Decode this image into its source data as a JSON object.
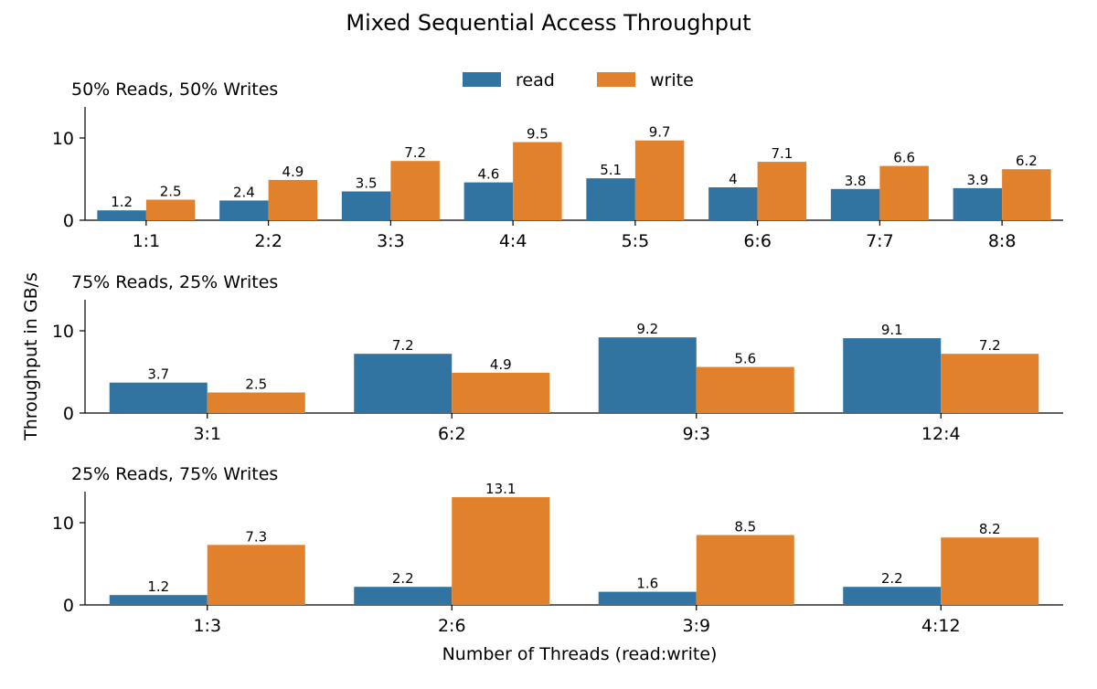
{
  "title": "Mixed Sequential Access Throughput",
  "ylabel": "Throughput in GB/s",
  "xlabel": "Number of Threads (read:write)",
  "legend": [
    {
      "name": "read",
      "color": "#3274a1"
    },
    {
      "name": "write",
      "color": "#e1812c"
    }
  ],
  "chart_data": [
    {
      "type": "bar",
      "title": "50% Reads, 50% Writes",
      "categories": [
        "1:1",
        "2:2",
        "3:3",
        "4:4",
        "5:5",
        "6:6",
        "7:7",
        "8:8"
      ],
      "series": [
        {
          "name": "read",
          "values": [
            1.2,
            2.4,
            3.5,
            4.6,
            5.1,
            4,
            3.8,
            3.9
          ]
        },
        {
          "name": "write",
          "values": [
            2.5,
            4.9,
            7.2,
            9.5,
            9.7,
            7.1,
            6.6,
            6.2
          ]
        }
      ],
      "yticks": [
        0,
        10
      ],
      "ylim": [
        0,
        13.8
      ]
    },
    {
      "type": "bar",
      "title": "75% Reads, 25% Writes",
      "categories": [
        "3:1",
        "6:2",
        "9:3",
        "12:4"
      ],
      "series": [
        {
          "name": "read",
          "values": [
            3.7,
            7.2,
            9.2,
            9.1
          ]
        },
        {
          "name": "write",
          "values": [
            2.5,
            4.9,
            5.6,
            7.2
          ]
        }
      ],
      "yticks": [
        0,
        10
      ],
      "ylim": [
        0,
        13.8
      ]
    },
    {
      "type": "bar",
      "title": "25% Reads, 75% Writes",
      "categories": [
        "1:3",
        "2:6",
        "3:9",
        "4:12"
      ],
      "series": [
        {
          "name": "read",
          "values": [
            1.2,
            2.2,
            1.6,
            2.2
          ]
        },
        {
          "name": "write",
          "values": [
            7.3,
            13.1,
            8.5,
            8.2
          ]
        }
      ],
      "yticks": [
        0,
        10
      ],
      "ylim": [
        0,
        13.8
      ]
    }
  ]
}
